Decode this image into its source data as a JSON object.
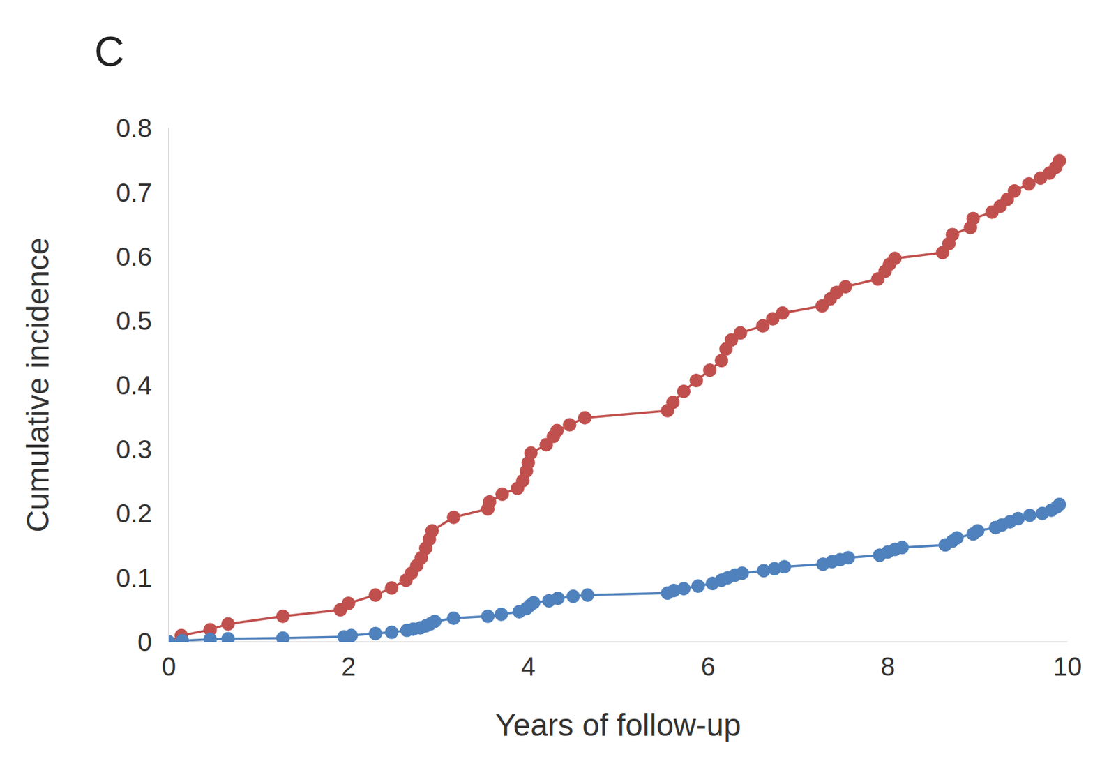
{
  "chart_data": {
    "type": "line",
    "title": "C",
    "x_label": "Years of follow-up",
    "y_label": "Cumulative incidence",
    "xlim": [
      0,
      10
    ],
    "xticks": [
      0,
      2,
      4,
      6,
      8,
      10
    ],
    "ylim": [
      0,
      0.8
    ],
    "yticks": [
      0,
      0.1,
      0.2,
      0.3,
      0.4,
      0.5,
      0.6,
      0.7,
      0.8
    ],
    "grid": false,
    "series": [
      {
        "color": "#c0504d",
        "marker": "circle",
        "x": [
          0,
          0.14,
          0.46,
          0.66,
          1.27,
          1.91,
          2.0,
          2.3,
          2.48,
          2.64,
          2.7,
          2.76,
          2.81,
          2.86,
          2.9,
          2.93,
          3.17,
          3.55,
          3.57,
          3.71,
          3.88,
          3.94,
          3.98,
          4.0,
          4.03,
          4.2,
          4.28,
          4.32,
          4.46,
          4.63,
          5.55,
          5.61,
          5.73,
          5.87,
          6.02,
          6.15,
          6.2,
          6.26,
          6.36,
          6.61,
          6.72,
          6.83,
          7.27,
          7.36,
          7.43,
          7.53,
          7.89,
          7.97,
          8.02,
          8.08,
          8.61,
          8.68,
          8.72,
          8.92,
          8.95,
          9.16,
          9.25,
          9.33,
          9.41,
          9.57,
          9.7,
          9.8,
          9.87,
          9.91
        ],
        "values": [
          0,
          0.01,
          0.019,
          0.028,
          0.04,
          0.05,
          0.06,
          0.073,
          0.084,
          0.096,
          0.107,
          0.119,
          0.131,
          0.146,
          0.16,
          0.173,
          0.194,
          0.207,
          0.218,
          0.23,
          0.239,
          0.251,
          0.266,
          0.279,
          0.294,
          0.307,
          0.32,
          0.329,
          0.338,
          0.349,
          0.36,
          0.373,
          0.39,
          0.407,
          0.423,
          0.438,
          0.456,
          0.47,
          0.481,
          0.492,
          0.503,
          0.512,
          0.523,
          0.534,
          0.544,
          0.553,
          0.565,
          0.577,
          0.588,
          0.597,
          0.606,
          0.62,
          0.634,
          0.645,
          0.659,
          0.669,
          0.678,
          0.689,
          0.702,
          0.713,
          0.722,
          0.73,
          0.739,
          0.749
        ]
      },
      {
        "color": "#4f81bd",
        "marker": "circle",
        "x": [
          0,
          0.15,
          0.46,
          0.66,
          1.27,
          1.95,
          2.03,
          2.3,
          2.48,
          2.65,
          2.72,
          2.8,
          2.86,
          2.91,
          2.96,
          3.17,
          3.55,
          3.7,
          3.9,
          3.98,
          4.02,
          4.06,
          4.23,
          4.33,
          4.5,
          4.66,
          5.55,
          5.62,
          5.73,
          5.89,
          6.05,
          6.15,
          6.22,
          6.3,
          6.38,
          6.62,
          6.74,
          6.85,
          7.28,
          7.38,
          7.47,
          7.56,
          7.91,
          8.0,
          8.08,
          8.16,
          8.64,
          8.72,
          8.77,
          8.95,
          9.0,
          9.2,
          9.27,
          9.36,
          9.45,
          9.58,
          9.72,
          9.82,
          9.88,
          9.91
        ],
        "values": [
          0,
          0.002,
          0.004,
          0.005,
          0.006,
          0.008,
          0.01,
          0.013,
          0.015,
          0.018,
          0.02,
          0.022,
          0.025,
          0.028,
          0.032,
          0.037,
          0.04,
          0.043,
          0.047,
          0.052,
          0.057,
          0.061,
          0.064,
          0.068,
          0.071,
          0.073,
          0.076,
          0.08,
          0.083,
          0.087,
          0.091,
          0.096,
          0.1,
          0.104,
          0.107,
          0.111,
          0.114,
          0.117,
          0.121,
          0.125,
          0.128,
          0.131,
          0.135,
          0.14,
          0.144,
          0.147,
          0.151,
          0.157,
          0.162,
          0.168,
          0.173,
          0.178,
          0.182,
          0.187,
          0.192,
          0.197,
          0.2,
          0.205,
          0.21,
          0.214
        ]
      }
    ]
  }
}
